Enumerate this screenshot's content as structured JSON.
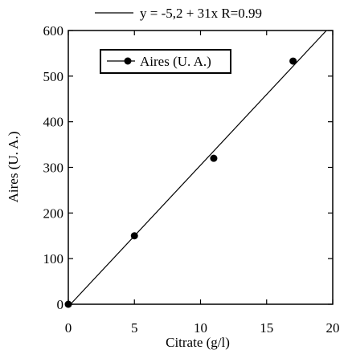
{
  "chart_data": {
    "type": "scatter",
    "xlabel": "Citrate (g/l)",
    "ylabel": "Aires (U. A.)",
    "xlim": [
      0,
      20
    ],
    "ylim": [
      0,
      600
    ],
    "xticks": [
      0,
      5,
      10,
      15,
      20
    ],
    "yticks": [
      0,
      100,
      200,
      300,
      400,
      500,
      600
    ],
    "grid": false,
    "legend_position": "top-left inside",
    "series": [
      {
        "name": "Aires (U. A.)",
        "x": [
          0,
          5,
          11,
          17
        ],
        "y": [
          0,
          150,
          320,
          533
        ]
      }
    ],
    "fit": {
      "label": "y = -5,2 + 31x  R=0.99",
      "intercept": -5.2,
      "slope": 31,
      "x_range": [
        0,
        20
      ]
    }
  }
}
